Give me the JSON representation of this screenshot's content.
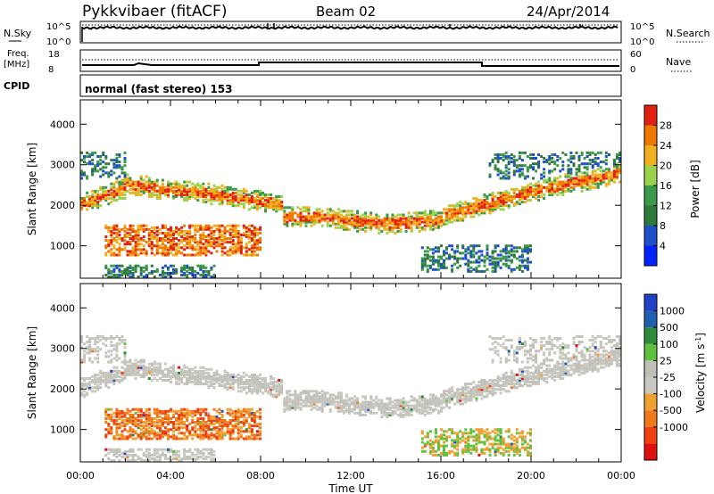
{
  "header": {
    "radar": "Pykkvibaer (fitACF)",
    "beam": "Beam 02",
    "date": "24/Apr/2014"
  },
  "noise_panel": {
    "left_label": "N.Sky",
    "right_label": "N.Search",
    "left_ticks": [
      "10^5",
      "10^0"
    ],
    "right_ticks": [
      "10^5",
      "10^0"
    ]
  },
  "freq_panel": {
    "left_label_1": "Freq.",
    "left_label_2": "[MHz]",
    "right_label": "Nave",
    "left_ticks": [
      "18",
      "8"
    ],
    "right_ticks": [
      "60",
      "0"
    ]
  },
  "cpid_panel": {
    "label": "CPID",
    "text": "normal (fast stereo) 153"
  },
  "colors": {
    "power_scale": [
      "#0022ff",
      "#1e4fc8",
      "#2f7a3a",
      "#3a9a4a",
      "#9bd24a",
      "#f0b020",
      "#f07800",
      "#e02010"
    ],
    "velocity_scale": [
      "#e01010",
      "#f04010",
      "#f07818",
      "#f0a030",
      "#c8c8c0",
      "#c0c0b8",
      "#60c040",
      "#2f8a3a",
      "#2060b0",
      "#2040c8"
    ]
  },
  "chart_data": [
    {
      "type": "heatmap",
      "name": "power",
      "ylabel": "Slant Range [km]",
      "xlabel": "Time UT",
      "x_ticks": [
        "00:00",
        "04:00",
        "08:00",
        "12:00",
        "16:00",
        "20:00",
        "00:00"
      ],
      "y_ticks": [
        1000,
        2000,
        3000,
        4000
      ],
      "xlim": [
        0,
        24
      ],
      "ylim": [
        200,
        4600
      ],
      "colorbar_label": "Power [dB]",
      "colorbar_ticks": [
        4,
        8,
        12,
        16,
        20,
        24,
        28
      ],
      "colorbar_range": [
        0,
        32
      ]
    },
    {
      "type": "heatmap",
      "name": "velocity",
      "ylabel": "Slant Range [km]",
      "xlabel": "Time UT",
      "x_ticks": [
        "00:00",
        "04:00",
        "08:00",
        "12:00",
        "16:00",
        "20:00",
        "00:00"
      ],
      "y_ticks": [
        1000,
        2000,
        3000,
        4000
      ],
      "xlim": [
        0,
        24
      ],
      "ylim": [
        200,
        4600
      ],
      "colorbar_label": "Velocity [m s^-1]",
      "colorbar_ticks": [
        "1000",
        "500",
        "100",
        "25",
        "-25",
        "-100",
        "-500",
        "-1000"
      ]
    }
  ]
}
